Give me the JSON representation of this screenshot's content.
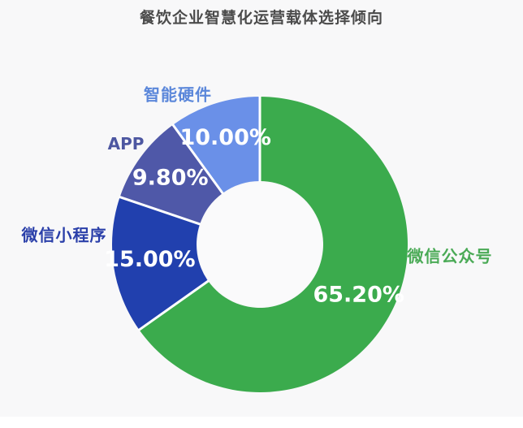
{
  "title": "餐饮企业智慧化运营载体选择倾向",
  "chart_data": {
    "type": "pie",
    "subtype": "donut",
    "title": "餐饮企业智慧化运营载体选择倾向",
    "unit": "%",
    "start_angle_deg": 0,
    "direction": "clockwise",
    "total": 100,
    "slices": [
      {
        "label": "微信公众号",
        "value": 65.2,
        "display": "65.20%",
        "color": "#3bab4d",
        "label_color": "#4aaa56"
      },
      {
        "label": "微信小程序",
        "value": 15.0,
        "display": "15.00%",
        "color": "#2140ae",
        "label_color": "#2a3fa9"
      },
      {
        "label": "APP",
        "value": 9.8,
        "display": "9.80%",
        "color": "#4f58a8",
        "label_color": "#4d57a1"
      },
      {
        "label": "智能硬件",
        "value": 10.0,
        "display": "10.00%",
        "color": "#6a90e8",
        "label_color": "#5b87da"
      }
    ],
    "value_label_color": "#ffffff",
    "legend": "none",
    "grid": false
  },
  "colors": {
    "background": "#f8f8f9",
    "hole": "#fafafb",
    "divider": "#ffffff",
    "title_text": "#4b4b4b",
    "bottom_strip": "#ffffff"
  }
}
